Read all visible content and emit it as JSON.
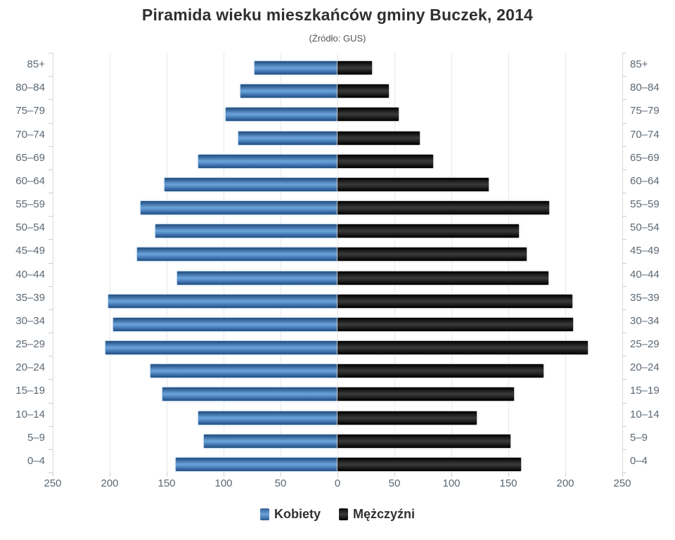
{
  "title": "Piramida wieku mieszkańców gminy Buczek, 2014",
  "subtitle": "(Źródło: GUS)",
  "legend": {
    "items": [
      {
        "label": "Kobiety",
        "swatch": "blue-gradient"
      },
      {
        "label": "Mężczyźni",
        "swatch": "black-gradient"
      }
    ]
  },
  "colors": {
    "female_bar": "#4f87c0",
    "male_bar": "#1c1c1c",
    "grid": "#e6e9ec",
    "axis": "#d5dade",
    "tick": "#c9ced4",
    "label": "#5c6873",
    "title": "#2f2f2f"
  },
  "chart_data": {
    "type": "bar",
    "variant": "population-pyramid",
    "title": "Piramida wieku mieszkańców gminy Buczek, 2014",
    "subtitle": "(Źródło: GUS)",
    "categories": [
      "85+",
      "80–84",
      "75–79",
      "70–74",
      "65–69",
      "60–64",
      "55–59",
      "50–54",
      "45–49",
      "40–44",
      "35–39",
      "30–34",
      "25–29",
      "20–24",
      "15–19",
      "10–14",
      "5–9",
      "0–4"
    ],
    "series": [
      {
        "name": "Kobiety",
        "side": "left",
        "color": "#4f87c0",
        "values": [
          73,
          85,
          98,
          87,
          122,
          152,
          173,
          160,
          176,
          141,
          201,
          197,
          204,
          164,
          154,
          122,
          117,
          142
        ]
      },
      {
        "name": "Mężczyźni",
        "side": "right",
        "color": "#1c1c1c",
        "values": [
          30,
          45,
          54,
          72,
          84,
          133,
          186,
          159,
          166,
          185,
          206,
          207,
          220,
          181,
          155,
          122,
          152,
          161
        ]
      }
    ],
    "xmax": 250,
    "axis_tick_labels": [
      "250",
      "200",
      "150",
      "100",
      "50",
      "0",
      "50",
      "100",
      "150",
      "200",
      "250"
    ],
    "grid": true,
    "legend_position": "bottom"
  }
}
